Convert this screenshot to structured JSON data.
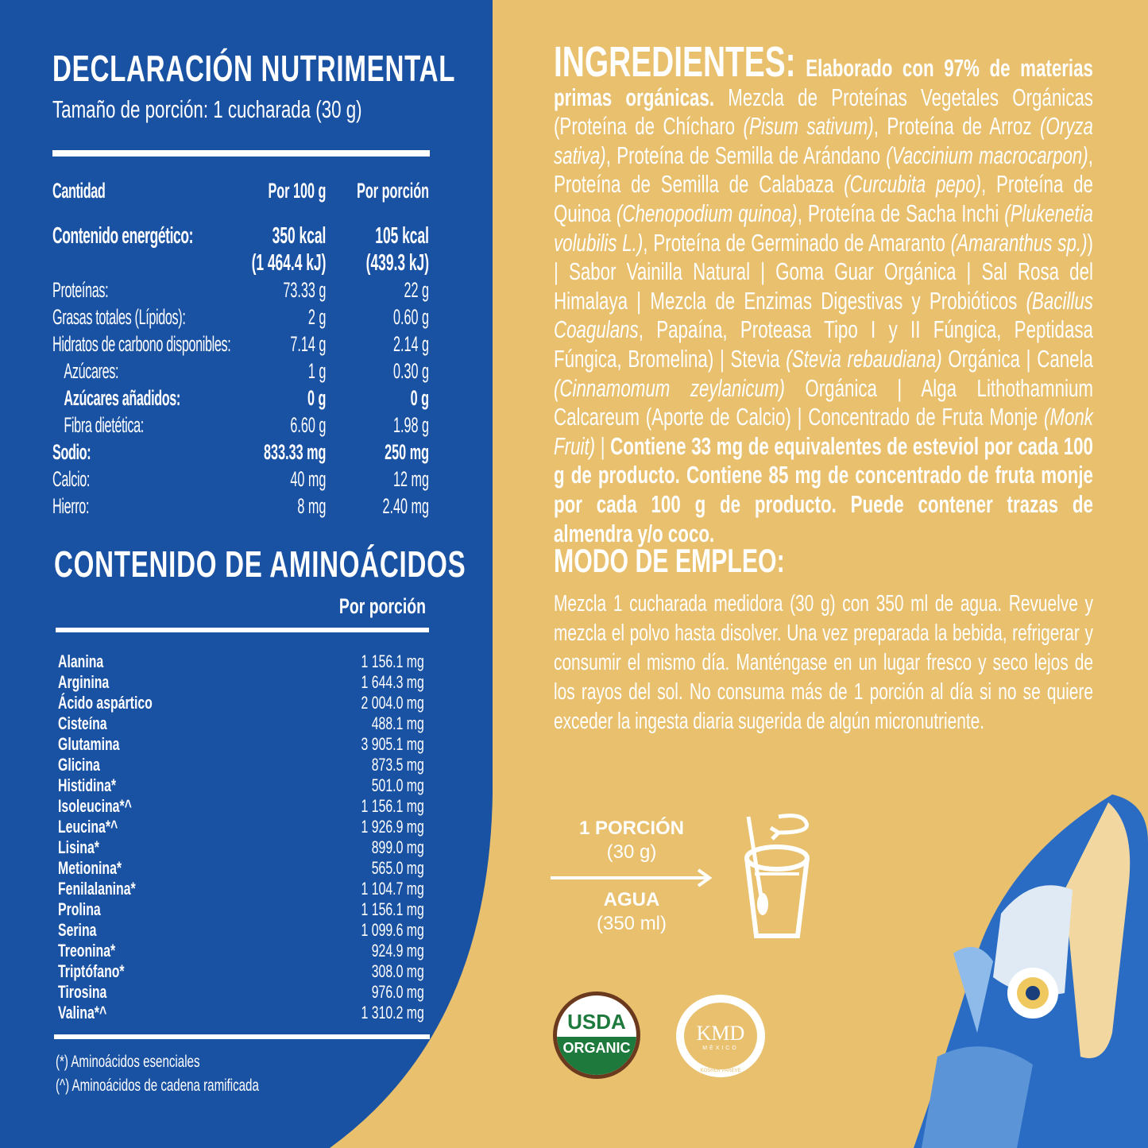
{
  "colors": {
    "blue": "#1a52a3",
    "gold": "#e8c06e",
    "white": "#ffffff",
    "usda_green": "#1e7a3c",
    "usda_brown": "#6b3a1e"
  },
  "nutrition": {
    "title": "DECLARACIÓN NUTRIMENTAL",
    "serving": "Tamaño de porción: 1 cucharada (30 g)",
    "headers": {
      "qty": "Cantidad",
      "per100": "Por 100 g",
      "perserving": "Por porción"
    },
    "energy": {
      "label": "Contenido energético:",
      "per100_kcal": "350 kcal",
      "per100_kj": "(1 464.4 kJ)",
      "perserving_kcal": "105 kcal",
      "perserving_kj": "(439.3 kJ)"
    },
    "rows": [
      {
        "label": "Proteínas:",
        "per100": "73.33 g",
        "perserving": "22 g"
      },
      {
        "label": "Grasas totales (Lípidos):",
        "per100": "2 g",
        "perserving": "0.60 g"
      },
      {
        "label": "Hidratos de carbono disponibles:",
        "per100": "7.14 g",
        "perserving": "2.14 g"
      },
      {
        "label": "Azúcares:",
        "per100": "1 g",
        "perserving": "0.30 g"
      },
      {
        "label": "Azúcares añadidos:",
        "per100": "0 g",
        "perserving": "0 g"
      },
      {
        "label": "Fibra dietética:",
        "per100": "6.60 g",
        "perserving": "1.98 g"
      },
      {
        "label": "Sodio:",
        "per100": "833.33 mg",
        "perserving": "250 mg"
      },
      {
        "label": "Calcio:",
        "per100": "40 mg",
        "perserving": "12 mg"
      },
      {
        "label": "Hierro:",
        "per100": "8 mg",
        "perserving": "2.40 mg"
      }
    ]
  },
  "amino": {
    "title": "CONTENIDO DE AMINOÁCIDOS",
    "col": "Por porción",
    "rows": [
      {
        "name": "Alanina",
        "value": "1 156.1 mg"
      },
      {
        "name": "Arginina",
        "value": "1 644.3 mg"
      },
      {
        "name": "Ácido aspártico",
        "value": "2 004.0 mg"
      },
      {
        "name": "Cisteína",
        "value": "488.1 mg"
      },
      {
        "name": "Glutamina",
        "value": "3 905.1 mg"
      },
      {
        "name": "Glicina",
        "value": "873.5 mg"
      },
      {
        "name": "Histidina*",
        "value": "501.0 mg"
      },
      {
        "name": "Isoleucina*^",
        "value": "1 156.1 mg"
      },
      {
        "name": "Leucina*^",
        "value": "1 926.9 mg"
      },
      {
        "name": "Lisina*",
        "value": "899.0 mg"
      },
      {
        "name": "Metionina*",
        "value": "565.0 mg"
      },
      {
        "name": "Fenilalanina*",
        "value": "1 104.7 mg"
      },
      {
        "name": "Prolina",
        "value": "1 156.1 mg"
      },
      {
        "name": "Serina",
        "value": "1 099.6 mg"
      },
      {
        "name": "Treonina*",
        "value": "924.9 mg"
      },
      {
        "name": "Triptófano*",
        "value": "308.0 mg"
      },
      {
        "name": "Tirosina",
        "value": "976.0 mg"
      },
      {
        "name": "Valina*^",
        "value": "1 310.2 mg"
      }
    ],
    "footnotes": [
      "(*)  Aminoácidos esenciales",
      "(^)  Aminoácidos de cadena ramificada"
    ]
  },
  "ingredients": {
    "title": "INGREDIENTES:",
    "segments": [
      {
        "s": "b",
        "text": " Elaborado con 97% de materias primas orgánicas."
      },
      {
        "s": "n",
        "text": " Mezcla de Proteínas Vegetales Orgánicas (Proteína de Chícharo "
      },
      {
        "s": "i",
        "text": "(Pisum sativum)"
      },
      {
        "s": "n",
        "text": ", Proteína de Arroz "
      },
      {
        "s": "i",
        "text": "(Oryza sativa)"
      },
      {
        "s": "n",
        "text": ", Proteína de Semilla de Arándano "
      },
      {
        "s": "i",
        "text": "(Vaccinium macrocarpon)"
      },
      {
        "s": "n",
        "text": ", Proteína de Semilla de Calabaza "
      },
      {
        "s": "i",
        "text": "(Curcubita pepo)"
      },
      {
        "s": "n",
        "text": ", Proteína de Quinoa "
      },
      {
        "s": "i",
        "text": "(Chenopodium quinoa)"
      },
      {
        "s": "n",
        "text": ", Proteína de Sacha Inchi "
      },
      {
        "s": "i",
        "text": "(Plukenetia volubilis L.)"
      },
      {
        "s": "n",
        "text": ", Proteína de Germinado de Amaranto "
      },
      {
        "s": "i",
        "text": "(Amaranthus sp.)"
      },
      {
        "s": "n",
        "text": ") | Sabor Vainilla Natural | Goma Guar Orgánica | Sal Rosa del Himalaya | Mezcla de Enzimas Digestivas y Probióticos "
      },
      {
        "s": "i",
        "text": "(Bacillus Coagulans"
      },
      {
        "s": "n",
        "text": ", Papaína, Proteasa Tipo I y II Fúngica, Peptidasa Fúngica, Bromelina) | Stevia "
      },
      {
        "s": "i",
        "text": "(Stevia rebaudiana)"
      },
      {
        "s": "n",
        "text": " Orgánica | Canela "
      },
      {
        "s": "i",
        "text": "(Cinnamomum zeylanicum)"
      },
      {
        "s": "n",
        "text": " Orgánica | Alga Lithothamnium Calcareum (Aporte de Calcio) | Concentrado de Fruta Monje "
      },
      {
        "s": "i",
        "text": "(Monk Fruit)"
      },
      {
        "s": "n",
        "text": " | "
      },
      {
        "s": "b",
        "text": "Contiene 33 mg de equivalentes de esteviol por cada 100 g de producto. Contiene 85 mg de concentrado de fruta monje por cada 100 g de producto. Puede contener trazas de almendra y/o coco."
      }
    ]
  },
  "usage": {
    "title": "MODO DE EMPLEO:",
    "text": "Mezcla 1 cucharada medidora (30 g) con 350 ml de agua. Revuelve y mezcla el polvo hasta disolver. Una vez preparada la bebida, refrigerar y consumir el mismo día. Manténgase en un lugar fresco y seco lejos de los rayos del sol. No consuma más de 1 porción al día si no se quiere exceder la ingesta diaria sugerida de algún micronutriente."
  },
  "preparation": {
    "portion": "1 PORCIÓN",
    "portion_qty": "(30 g)",
    "water": "AGUA",
    "water_qty": "(350 ml)",
    "icon": "glass-with-spoon-stir-icon"
  },
  "badges": {
    "usda": {
      "top": "USDA",
      "bottom": "ORGANIC"
    },
    "kmd": {
      "name": "KMD",
      "country": "MÉXICO",
      "type": "KOSHER PAREVE"
    }
  }
}
